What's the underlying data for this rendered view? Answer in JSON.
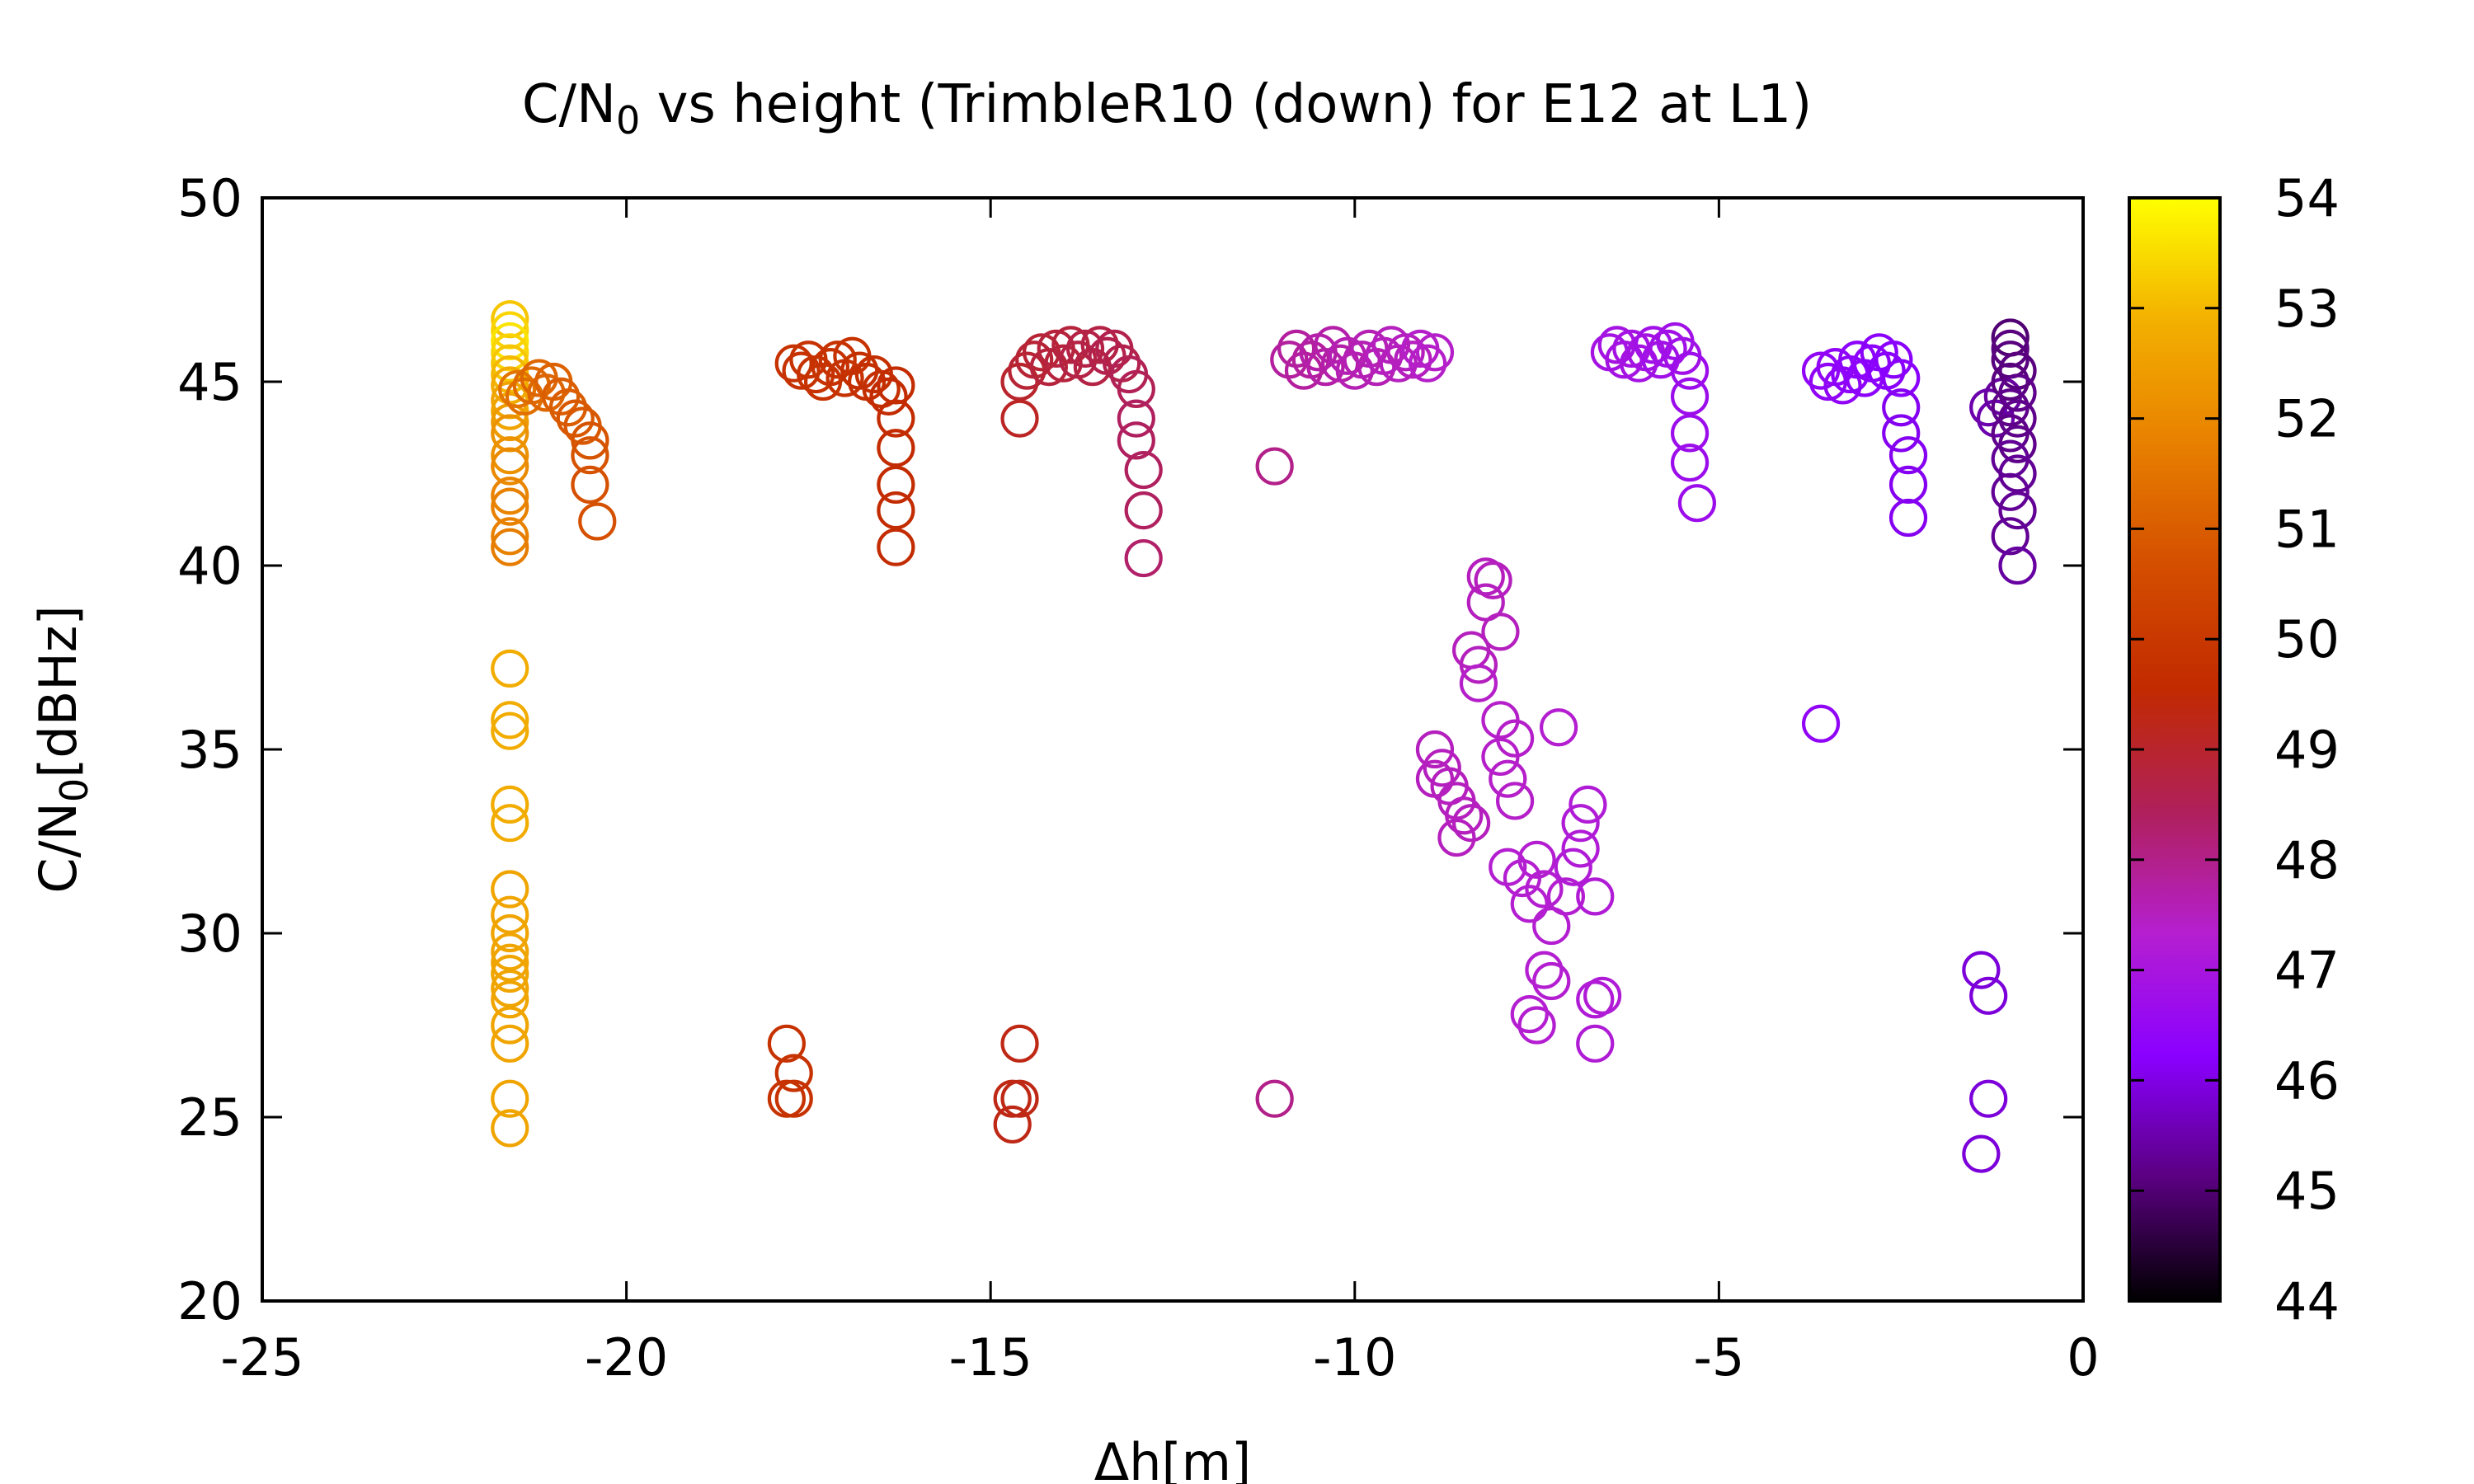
{
  "chart_data": {
    "type": "scatter",
    "title": {
      "prefix": "C/N",
      "sub": "0",
      "suffix": " vs height (TrimbleR10 (down) for E12 at L1)"
    },
    "xlabel": "Δh[m]",
    "ylabel": {
      "prefix": "C/N",
      "sub": "0",
      "suffix": "[dBHz]"
    },
    "xlim": [
      -25,
      0
    ],
    "ylim": [
      20,
      50
    ],
    "xticks": [
      "-25",
      "-20",
      "-15",
      "-10",
      "-5",
      "0"
    ],
    "yticks": [
      "20",
      "25",
      "30",
      "35",
      "40",
      "45",
      "50"
    ],
    "colorbar": {
      "range": [
        44,
        54
      ],
      "ticks": [
        "44",
        "45",
        "46",
        "47",
        "48",
        "49",
        "50",
        "51",
        "52",
        "53",
        "54"
      ],
      "palette": [
        "#000000",
        "#5a0080",
        "#8a00ff",
        "#b51fd0",
        "#b0205a",
        "#c22a00",
        "#d44e00",
        "#e88000",
        "#f3b000",
        "#ffff00"
      ]
    },
    "marker": "open-circle",
    "grid": false,
    "points": [
      [
        -21.6,
        46.7,
        53.2
      ],
      [
        -21.6,
        46.4,
        53.4
      ],
      [
        -21.6,
        46.1,
        53.6
      ],
      [
        -21.6,
        45.8,
        53.4
      ],
      [
        -21.6,
        45.5,
        53.2
      ],
      [
        -21.6,
        45.2,
        53.0
      ],
      [
        -21.6,
        44.9,
        52.8
      ],
      [
        -21.6,
        44.5,
        52.6
      ],
      [
        -21.6,
        44.2,
        52.6
      ],
      [
        -21.6,
        43.9,
        52.4
      ],
      [
        -21.6,
        43.6,
        52.2
      ],
      [
        -21.6,
        43.0,
        52.2
      ],
      [
        -21.6,
        42.7,
        52.0
      ],
      [
        -21.6,
        41.9,
        51.9
      ],
      [
        -21.6,
        41.6,
        51.8
      ],
      [
        -21.6,
        40.8,
        51.8
      ],
      [
        -21.6,
        40.5,
        51.7
      ],
      [
        -21.6,
        37.2,
        52.8
      ],
      [
        -21.6,
        35.8,
        52.8
      ],
      [
        -21.6,
        35.5,
        52.8
      ],
      [
        -21.6,
        33.5,
        52.8
      ],
      [
        -21.6,
        33.0,
        52.8
      ],
      [
        -21.6,
        31.2,
        52.6
      ],
      [
        -21.6,
        30.5,
        52.6
      ],
      [
        -21.6,
        30.0,
        52.6
      ],
      [
        -21.6,
        29.5,
        52.6
      ],
      [
        -21.6,
        29.2,
        52.6
      ],
      [
        -21.6,
        28.9,
        52.6
      ],
      [
        -21.6,
        28.5,
        52.6
      ],
      [
        -21.6,
        28.2,
        52.6
      ],
      [
        -21.6,
        27.5,
        52.6
      ],
      [
        -21.6,
        27.0,
        52.6
      ],
      [
        -21.6,
        25.5,
        52.6
      ],
      [
        -21.6,
        24.7,
        52.6
      ],
      [
        -21.5,
        44.8,
        51.5
      ],
      [
        -21.4,
        44.6,
        51.4
      ],
      [
        -21.3,
        44.9,
        51.3
      ],
      [
        -21.2,
        45.1,
        51.2
      ],
      [
        -21.1,
        44.7,
        51.2
      ],
      [
        -21.0,
        45.0,
        51.1
      ],
      [
        -20.9,
        44.6,
        51.0
      ],
      [
        -20.8,
        44.3,
        51.0
      ],
      [
        -20.7,
        44.0,
        50.9
      ],
      [
        -20.6,
        43.8,
        50.9
      ],
      [
        -20.5,
        43.4,
        50.8
      ],
      [
        -20.5,
        43.0,
        50.8
      ],
      [
        -20.5,
        42.2,
        50.7
      ],
      [
        -20.4,
        41.2,
        50.7
      ],
      [
        -17.7,
        45.5,
        49.8
      ],
      [
        -17.6,
        45.3,
        49.8
      ],
      [
        -17.5,
        45.6,
        49.8
      ],
      [
        -17.4,
        45.2,
        49.8
      ],
      [
        -17.3,
        45.0,
        49.8
      ],
      [
        -17.2,
        45.4,
        49.8
      ],
      [
        -17.1,
        45.6,
        49.8
      ],
      [
        -17.0,
        45.1,
        49.8
      ],
      [
        -16.9,
        45.7,
        49.8
      ],
      [
        -16.8,
        45.3,
        49.7
      ],
      [
        -16.7,
        45.0,
        49.7
      ],
      [
        -16.6,
        45.2,
        49.7
      ],
      [
        -16.5,
        44.8,
        49.7
      ],
      [
        -16.4,
        44.6,
        49.6
      ],
      [
        -16.3,
        44.9,
        49.6
      ],
      [
        -16.3,
        44.0,
        49.6
      ],
      [
        -16.3,
        43.2,
        49.6
      ],
      [
        -16.3,
        42.2,
        49.6
      ],
      [
        -16.3,
        41.5,
        49.6
      ],
      [
        -16.3,
        40.5,
        49.6
      ],
      [
        -17.8,
        27.0,
        49.8
      ],
      [
        -17.7,
        26.2,
        49.8
      ],
      [
        -17.7,
        25.5,
        49.8
      ],
      [
        -17.8,
        25.5,
        49.8
      ],
      [
        -14.6,
        45.0,
        49.0
      ],
      [
        -14.5,
        45.3,
        48.9
      ],
      [
        -14.4,
        45.6,
        48.9
      ],
      [
        -14.3,
        45.8,
        48.9
      ],
      [
        -14.2,
        45.4,
        48.8
      ],
      [
        -14.1,
        45.9,
        48.8
      ],
      [
        -14.0,
        45.5,
        48.8
      ],
      [
        -13.9,
        46.0,
        48.8
      ],
      [
        -13.8,
        45.6,
        48.7
      ],
      [
        -13.7,
        45.9,
        48.7
      ],
      [
        -13.6,
        45.4,
        48.7
      ],
      [
        -13.5,
        46.0,
        48.7
      ],
      [
        -13.4,
        45.7,
        48.6
      ],
      [
        -13.3,
        45.9,
        48.6
      ],
      [
        -13.2,
        45.5,
        48.6
      ],
      [
        -13.1,
        45.2,
        48.5
      ],
      [
        -13.0,
        44.8,
        48.5
      ],
      [
        -13.0,
        44.0,
        48.4
      ],
      [
        -13.0,
        43.4,
        48.4
      ],
      [
        -12.9,
        42.6,
        48.4
      ],
      [
        -12.9,
        41.5,
        48.4
      ],
      [
        -12.9,
        40.2,
        48.3
      ],
      [
        -14.6,
        44.0,
        49.1
      ],
      [
        -14.6,
        27.0,
        49.3
      ],
      [
        -14.7,
        25.5,
        49.3
      ],
      [
        -14.6,
        25.5,
        49.3
      ],
      [
        -14.7,
        24.8,
        49.3
      ],
      [
        -11.1,
        42.7,
        48.0
      ],
      [
        -11.1,
        25.5,
        48.0
      ],
      [
        -10.9,
        45.6,
        47.8
      ],
      [
        -10.8,
        45.9,
        47.8
      ],
      [
        -10.7,
        45.3,
        47.8
      ],
      [
        -10.6,
        45.6,
        47.8
      ],
      [
        -10.5,
        45.8,
        47.7
      ],
      [
        -10.4,
        45.4,
        47.7
      ],
      [
        -10.3,
        46.0,
        47.7
      ],
      [
        -10.2,
        45.5,
        47.7
      ],
      [
        -10.1,
        45.7,
        47.6
      ],
      [
        -10.0,
        45.3,
        47.6
      ],
      [
        -9.9,
        45.6,
        47.6
      ],
      [
        -9.8,
        45.9,
        47.6
      ],
      [
        -9.7,
        45.4,
        47.6
      ],
      [
        -9.6,
        45.7,
        47.5
      ],
      [
        -9.5,
        46.0,
        47.5
      ],
      [
        -9.4,
        45.5,
        47.5
      ],
      [
        -9.3,
        45.8,
        47.5
      ],
      [
        -9.2,
        45.6,
        47.5
      ],
      [
        -9.1,
        45.9,
        47.4
      ],
      [
        -9.0,
        45.5,
        47.4
      ],
      [
        -8.9,
        45.8,
        47.4
      ],
      [
        -8.2,
        39.7,
        47.5
      ],
      [
        -8.1,
        39.6,
        47.5
      ],
      [
        -8.2,
        39.0,
        47.5
      ],
      [
        -8.0,
        38.2,
        47.5
      ],
      [
        -8.4,
        37.7,
        47.5
      ],
      [
        -8.3,
        37.3,
        47.5
      ],
      [
        -8.3,
        36.8,
        47.4
      ],
      [
        -8.0,
        35.8,
        47.4
      ],
      [
        -7.8,
        35.3,
        47.4
      ],
      [
        -7.2,
        35.6,
        47.3
      ],
      [
        -8.0,
        34.8,
        47.4
      ],
      [
        -7.9,
        34.2,
        47.4
      ],
      [
        -7.8,
        33.6,
        47.4
      ],
      [
        -8.9,
        35.0,
        47.5
      ],
      [
        -8.8,
        34.5,
        47.5
      ],
      [
        -8.7,
        34.0,
        47.5
      ],
      [
        -8.9,
        34.2,
        47.5
      ],
      [
        -8.6,
        33.6,
        47.5
      ],
      [
        -8.5,
        33.2,
        47.5
      ],
      [
        -8.6,
        32.6,
        47.5
      ],
      [
        -8.4,
        33.0,
        47.5
      ],
      [
        -7.9,
        31.8,
        47.3
      ],
      [
        -7.7,
        31.5,
        47.3
      ],
      [
        -7.6,
        30.8,
        47.3
      ],
      [
        -7.5,
        32.0,
        47.3
      ],
      [
        -7.4,
        31.2,
        47.3
      ],
      [
        -7.3,
        30.2,
        47.3
      ],
      [
        -7.4,
        29.0,
        47.3
      ],
      [
        -7.3,
        28.7,
        47.3
      ],
      [
        -7.1,
        31.0,
        47.3
      ],
      [
        -7.0,
        31.8,
        47.2
      ],
      [
        -6.9,
        32.3,
        47.2
      ],
      [
        -6.9,
        33.0,
        47.2
      ],
      [
        -6.8,
        33.5,
        47.2
      ],
      [
        -6.7,
        31.0,
        47.2
      ],
      [
        -6.6,
        28.3,
        47.2
      ],
      [
        -6.7,
        28.2,
        47.2
      ],
      [
        -6.7,
        27.0,
        47.2
      ],
      [
        -7.6,
        27.8,
        47.3
      ],
      [
        -7.5,
        27.5,
        47.3
      ],
      [
        -6.5,
        45.8,
        46.9
      ],
      [
        -6.4,
        46.0,
        46.9
      ],
      [
        -6.3,
        45.6,
        46.9
      ],
      [
        -6.2,
        45.9,
        46.9
      ],
      [
        -6.1,
        45.5,
        46.9
      ],
      [
        -6.0,
        45.8,
        46.9
      ],
      [
        -5.9,
        46.0,
        46.8
      ],
      [
        -5.8,
        45.6,
        46.8
      ],
      [
        -5.7,
        45.9,
        46.8
      ],
      [
        -5.6,
        46.1,
        46.8
      ],
      [
        -5.5,
        45.7,
        46.8
      ],
      [
        -5.4,
        45.3,
        46.7
      ],
      [
        -5.4,
        44.6,
        46.7
      ],
      [
        -5.4,
        43.6,
        46.7
      ],
      [
        -5.4,
        42.8,
        46.7
      ],
      [
        -5.3,
        41.7,
        46.7
      ],
      [
        -3.6,
        35.7,
        46.4
      ],
      [
        -3.6,
        45.3,
        46.4
      ],
      [
        -3.5,
        45.0,
        46.4
      ],
      [
        -3.4,
        45.4,
        46.4
      ],
      [
        -3.3,
        44.9,
        46.4
      ],
      [
        -3.2,
        45.2,
        46.3
      ],
      [
        -3.1,
        45.6,
        46.3
      ],
      [
        -3.0,
        45.1,
        46.3
      ],
      [
        -2.9,
        45.5,
        46.3
      ],
      [
        -2.8,
        45.8,
        46.2
      ],
      [
        -2.7,
        45.3,
        46.2
      ],
      [
        -2.6,
        45.6,
        46.2
      ],
      [
        -2.5,
        45.1,
        46.2
      ],
      [
        -2.5,
        44.3,
        46.1
      ],
      [
        -2.5,
        43.6,
        46.1
      ],
      [
        -2.4,
        43.0,
        46.1
      ],
      [
        -2.4,
        42.2,
        46.1
      ],
      [
        -2.4,
        41.3,
        46.1
      ],
      [
        -1.4,
        29.0,
        45.9
      ],
      [
        -1.3,
        28.3,
        45.9
      ],
      [
        -1.3,
        25.5,
        45.9
      ],
      [
        -1.4,
        24.0,
        45.9
      ],
      [
        -1.3,
        44.3,
        45.5
      ],
      [
        -1.2,
        44.0,
        45.5
      ],
      [
        -1.1,
        44.6,
        45.4
      ],
      [
        -1.0,
        46.2,
        45.0
      ],
      [
        -1.0,
        45.9,
        45.1
      ],
      [
        -1.0,
        45.6,
        45.1
      ],
      [
        -0.9,
        45.3,
        45.1
      ],
      [
        -1.0,
        45.0,
        45.1
      ],
      [
        -0.9,
        44.7,
        45.2
      ],
      [
        -1.0,
        44.3,
        45.2
      ],
      [
        -0.9,
        44.0,
        45.2
      ],
      [
        -1.0,
        43.6,
        45.2
      ],
      [
        -0.9,
        43.3,
        45.2
      ],
      [
        -1.0,
        42.9,
        45.3
      ],
      [
        -0.9,
        42.5,
        45.3
      ],
      [
        -1.0,
        42.0,
        45.3
      ],
      [
        -0.9,
        41.5,
        45.3
      ],
      [
        -1.0,
        40.8,
        45.3
      ],
      [
        -0.9,
        40.0,
        45.4
      ]
    ]
  }
}
